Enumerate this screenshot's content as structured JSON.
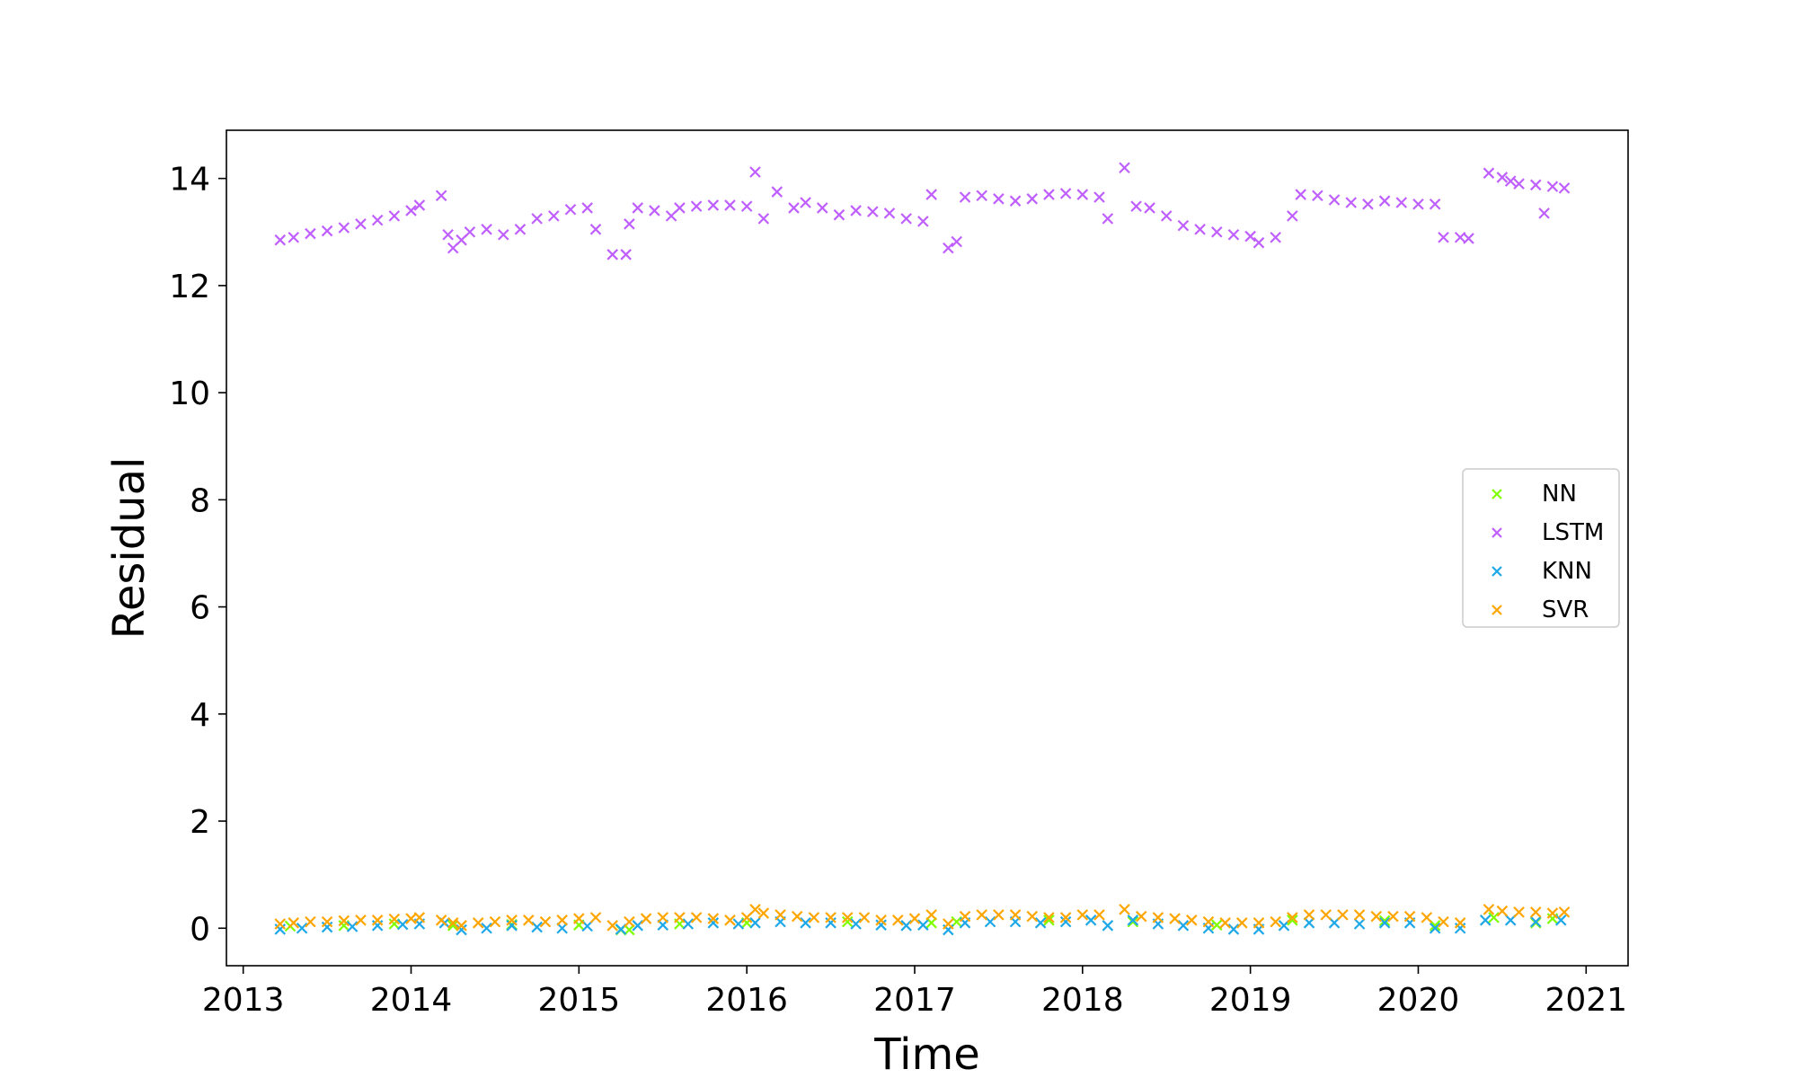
{
  "chart_data": {
    "type": "scatter",
    "title": "",
    "xlabel": "Time",
    "ylabel": "Residual",
    "xlim": [
      2012.9,
      2021.25
    ],
    "ylim": [
      -0.7,
      14.9
    ],
    "xticks": [
      2013,
      2014,
      2015,
      2016,
      2017,
      2018,
      2019,
      2020,
      2021
    ],
    "xtick_labels": [
      "2013",
      "2014",
      "2015",
      "2016",
      "2017",
      "2018",
      "2019",
      "2020",
      "2021"
    ],
    "yticks": [
      0,
      2,
      4,
      6,
      8,
      10,
      12,
      14
    ],
    "ytick_labels": [
      "0",
      "2",
      "4",
      "6",
      "8",
      "10",
      "12",
      "14"
    ],
    "grid": false,
    "marker": "x",
    "legend_position": "center-right",
    "series": [
      {
        "name": "NN",
        "color": "#7fff00",
        "points": [
          [
            2013.28,
            0.04
          ],
          [
            2013.6,
            0.05
          ],
          [
            2013.9,
            0.08
          ],
          [
            2014.25,
            0.05
          ],
          [
            2014.6,
            0.07
          ],
          [
            2015.0,
            0.06
          ],
          [
            2015.25,
            -0.03
          ],
          [
            2015.3,
            -0.03
          ],
          [
            2015.6,
            0.08
          ],
          [
            2016.0,
            0.1
          ],
          [
            2016.6,
            0.12
          ],
          [
            2017.1,
            0.1
          ],
          [
            2017.25,
            0.12
          ],
          [
            2017.8,
            0.15
          ],
          [
            2018.3,
            0.12
          ],
          [
            2018.8,
            0.06
          ],
          [
            2019.25,
            0.15
          ],
          [
            2019.8,
            0.14
          ],
          [
            2020.1,
            0.05
          ],
          [
            2020.45,
            0.2
          ],
          [
            2020.7,
            0.1
          ],
          [
            2020.8,
            0.18
          ]
        ]
      },
      {
        "name": "LSTM",
        "color": "#bf5fff",
        "points": [
          [
            2013.22,
            12.85
          ],
          [
            2013.3,
            12.9
          ],
          [
            2013.4,
            12.97
          ],
          [
            2013.5,
            13.02
          ],
          [
            2013.6,
            13.08
          ],
          [
            2013.7,
            13.15
          ],
          [
            2013.8,
            13.22
          ],
          [
            2013.9,
            13.3
          ],
          [
            2014.0,
            13.4
          ],
          [
            2014.05,
            13.5
          ],
          [
            2014.18,
            13.68
          ],
          [
            2014.22,
            12.95
          ],
          [
            2014.25,
            12.7
          ],
          [
            2014.3,
            12.85
          ],
          [
            2014.35,
            13.0
          ],
          [
            2014.45,
            13.05
          ],
          [
            2014.55,
            12.95
          ],
          [
            2014.65,
            13.05
          ],
          [
            2014.75,
            13.25
          ],
          [
            2014.85,
            13.3
          ],
          [
            2014.95,
            13.42
          ],
          [
            2015.05,
            13.45
          ],
          [
            2015.1,
            13.05
          ],
          [
            2015.2,
            12.58
          ],
          [
            2015.28,
            12.58
          ],
          [
            2015.3,
            13.15
          ],
          [
            2015.35,
            13.45
          ],
          [
            2015.45,
            13.4
          ],
          [
            2015.55,
            13.3
          ],
          [
            2015.6,
            13.45
          ],
          [
            2015.7,
            13.48
          ],
          [
            2015.8,
            13.5
          ],
          [
            2015.9,
            13.5
          ],
          [
            2016.0,
            13.48
          ],
          [
            2016.05,
            14.12
          ],
          [
            2016.1,
            13.25
          ],
          [
            2016.18,
            13.75
          ],
          [
            2016.28,
            13.45
          ],
          [
            2016.35,
            13.55
          ],
          [
            2016.45,
            13.45
          ],
          [
            2016.55,
            13.32
          ],
          [
            2016.65,
            13.4
          ],
          [
            2016.75,
            13.38
          ],
          [
            2016.85,
            13.35
          ],
          [
            2016.95,
            13.25
          ],
          [
            2017.05,
            13.2
          ],
          [
            2017.1,
            13.7
          ],
          [
            2017.2,
            12.7
          ],
          [
            2017.25,
            12.82
          ],
          [
            2017.3,
            13.65
          ],
          [
            2017.4,
            13.68
          ],
          [
            2017.5,
            13.62
          ],
          [
            2017.6,
            13.58
          ],
          [
            2017.7,
            13.62
          ],
          [
            2017.8,
            13.7
          ],
          [
            2017.9,
            13.72
          ],
          [
            2018.0,
            13.7
          ],
          [
            2018.1,
            13.65
          ],
          [
            2018.15,
            13.25
          ],
          [
            2018.25,
            14.2
          ],
          [
            2018.32,
            13.48
          ],
          [
            2018.4,
            13.45
          ],
          [
            2018.5,
            13.3
          ],
          [
            2018.6,
            13.12
          ],
          [
            2018.7,
            13.05
          ],
          [
            2018.8,
            13.0
          ],
          [
            2018.9,
            12.95
          ],
          [
            2019.0,
            12.92
          ],
          [
            2019.05,
            12.8
          ],
          [
            2019.15,
            12.9
          ],
          [
            2019.25,
            13.3
          ],
          [
            2019.3,
            13.7
          ],
          [
            2019.4,
            13.68
          ],
          [
            2019.5,
            13.6
          ],
          [
            2019.6,
            13.55
          ],
          [
            2019.7,
            13.52
          ],
          [
            2019.8,
            13.58
          ],
          [
            2019.9,
            13.55
          ],
          [
            2020.0,
            13.52
          ],
          [
            2020.1,
            13.52
          ],
          [
            2020.15,
            12.9
          ],
          [
            2020.25,
            12.9
          ],
          [
            2020.3,
            12.88
          ],
          [
            2020.42,
            14.1
          ],
          [
            2020.5,
            14.02
          ],
          [
            2020.55,
            13.95
          ],
          [
            2020.6,
            13.9
          ],
          [
            2020.7,
            13.88
          ],
          [
            2020.75,
            13.35
          ],
          [
            2020.8,
            13.85
          ],
          [
            2020.87,
            13.82
          ]
        ]
      },
      {
        "name": "KNN",
        "color": "#1fa8e8",
        "points": [
          [
            2013.22,
            -0.02
          ],
          [
            2013.35,
            0.0
          ],
          [
            2013.5,
            0.02
          ],
          [
            2013.65,
            0.03
          ],
          [
            2013.8,
            0.05
          ],
          [
            2013.95,
            0.07
          ],
          [
            2014.05,
            0.08
          ],
          [
            2014.2,
            0.1
          ],
          [
            2014.3,
            -0.03
          ],
          [
            2014.45,
            0.0
          ],
          [
            2014.6,
            0.05
          ],
          [
            2014.75,
            0.02
          ],
          [
            2014.9,
            0.0
          ],
          [
            2015.05,
            0.04
          ],
          [
            2015.25,
            -0.02
          ],
          [
            2015.35,
            0.05
          ],
          [
            2015.5,
            0.06
          ],
          [
            2015.65,
            0.08
          ],
          [
            2015.8,
            0.1
          ],
          [
            2015.95,
            0.08
          ],
          [
            2016.05,
            0.1
          ],
          [
            2016.2,
            0.12
          ],
          [
            2016.35,
            0.1
          ],
          [
            2016.5,
            0.1
          ],
          [
            2016.65,
            0.08
          ],
          [
            2016.8,
            0.06
          ],
          [
            2016.95,
            0.05
          ],
          [
            2017.05,
            0.06
          ],
          [
            2017.2,
            -0.03
          ],
          [
            2017.3,
            0.1
          ],
          [
            2017.45,
            0.12
          ],
          [
            2017.6,
            0.12
          ],
          [
            2017.75,
            0.1
          ],
          [
            2017.9,
            0.12
          ],
          [
            2018.05,
            0.15
          ],
          [
            2018.15,
            0.05
          ],
          [
            2018.3,
            0.15
          ],
          [
            2018.45,
            0.08
          ],
          [
            2018.6,
            0.05
          ],
          [
            2018.75,
            0.0
          ],
          [
            2018.9,
            -0.02
          ],
          [
            2019.05,
            -0.02
          ],
          [
            2019.2,
            0.05
          ],
          [
            2019.35,
            0.1
          ],
          [
            2019.5,
            0.1
          ],
          [
            2019.65,
            0.08
          ],
          [
            2019.8,
            0.1
          ],
          [
            2019.95,
            0.1
          ],
          [
            2020.1,
            0.0
          ],
          [
            2020.25,
            0.0
          ],
          [
            2020.4,
            0.15
          ],
          [
            2020.55,
            0.15
          ],
          [
            2020.7,
            0.12
          ],
          [
            2020.85,
            0.15
          ]
        ]
      },
      {
        "name": "SVR",
        "color": "#ffa500",
        "points": [
          [
            2013.22,
            0.08
          ],
          [
            2013.3,
            0.1
          ],
          [
            2013.4,
            0.12
          ],
          [
            2013.5,
            0.12
          ],
          [
            2013.6,
            0.14
          ],
          [
            2013.7,
            0.15
          ],
          [
            2013.8,
            0.15
          ],
          [
            2013.9,
            0.17
          ],
          [
            2014.0,
            0.18
          ],
          [
            2014.05,
            0.2
          ],
          [
            2014.18,
            0.15
          ],
          [
            2014.25,
            0.1
          ],
          [
            2014.3,
            0.05
          ],
          [
            2014.4,
            0.1
          ],
          [
            2014.5,
            0.12
          ],
          [
            2014.6,
            0.15
          ],
          [
            2014.7,
            0.15
          ],
          [
            2014.8,
            0.12
          ],
          [
            2014.9,
            0.15
          ],
          [
            2015.0,
            0.18
          ],
          [
            2015.1,
            0.2
          ],
          [
            2015.2,
            0.05
          ],
          [
            2015.3,
            0.12
          ],
          [
            2015.4,
            0.18
          ],
          [
            2015.5,
            0.2
          ],
          [
            2015.6,
            0.2
          ],
          [
            2015.7,
            0.2
          ],
          [
            2015.8,
            0.18
          ],
          [
            2015.9,
            0.15
          ],
          [
            2016.0,
            0.2
          ],
          [
            2016.05,
            0.35
          ],
          [
            2016.1,
            0.28
          ],
          [
            2016.2,
            0.25
          ],
          [
            2016.3,
            0.22
          ],
          [
            2016.4,
            0.2
          ],
          [
            2016.5,
            0.2
          ],
          [
            2016.6,
            0.2
          ],
          [
            2016.7,
            0.2
          ],
          [
            2016.8,
            0.15
          ],
          [
            2016.9,
            0.15
          ],
          [
            2017.0,
            0.18
          ],
          [
            2017.1,
            0.25
          ],
          [
            2017.2,
            0.08
          ],
          [
            2017.3,
            0.22
          ],
          [
            2017.4,
            0.25
          ],
          [
            2017.5,
            0.25
          ],
          [
            2017.6,
            0.25
          ],
          [
            2017.7,
            0.22
          ],
          [
            2017.8,
            0.2
          ],
          [
            2017.9,
            0.2
          ],
          [
            2018.0,
            0.25
          ],
          [
            2018.1,
            0.25
          ],
          [
            2018.25,
            0.35
          ],
          [
            2018.35,
            0.22
          ],
          [
            2018.45,
            0.2
          ],
          [
            2018.55,
            0.18
          ],
          [
            2018.65,
            0.15
          ],
          [
            2018.75,
            0.12
          ],
          [
            2018.85,
            0.1
          ],
          [
            2018.95,
            0.1
          ],
          [
            2019.05,
            0.1
          ],
          [
            2019.15,
            0.12
          ],
          [
            2019.25,
            0.2
          ],
          [
            2019.35,
            0.25
          ],
          [
            2019.45,
            0.25
          ],
          [
            2019.55,
            0.25
          ],
          [
            2019.65,
            0.25
          ],
          [
            2019.75,
            0.22
          ],
          [
            2019.85,
            0.22
          ],
          [
            2019.95,
            0.22
          ],
          [
            2020.05,
            0.2
          ],
          [
            2020.15,
            0.12
          ],
          [
            2020.25,
            0.1
          ],
          [
            2020.42,
            0.35
          ],
          [
            2020.5,
            0.32
          ],
          [
            2020.6,
            0.3
          ],
          [
            2020.7,
            0.3
          ],
          [
            2020.8,
            0.28
          ],
          [
            2020.87,
            0.3
          ]
        ]
      }
    ]
  }
}
